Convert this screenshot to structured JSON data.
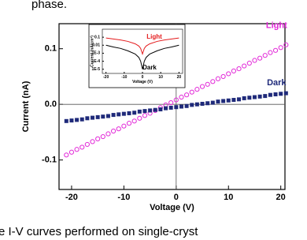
{
  "caption_top": "phase.",
  "caption_bottom": "e I-V curves performed on single-cryst",
  "chart_data": [
    {
      "type": "scatter",
      "xlabel": "Voltage (V)",
      "ylabel": "Current (nA)",
      "xlim": [
        -22.4,
        20.8
      ],
      "ylim": [
        -0.153,
        0.145
      ],
      "xticks": [
        -20,
        -10,
        0,
        10,
        20
      ],
      "yticks": [
        -0.1,
        {
          "value": 0,
          "label": "0.0"
        },
        0.1
      ],
      "x": [
        -21,
        -20,
        -19,
        -18,
        -17,
        -16,
        -15,
        -14,
        -13,
        -12,
        -11,
        -10,
        -9,
        -8,
        -7,
        -6,
        -5,
        -4,
        -3,
        -2,
        -1,
        0,
        1,
        2,
        3,
        4,
        5,
        6,
        7,
        8,
        9,
        10,
        11,
        12,
        13,
        14,
        15,
        16,
        17,
        18,
        19,
        20,
        21
      ],
      "series": [
        {
          "name": "Light",
          "color": "#e22ad8",
          "marker": "circle",
          "values": [
            -0.091,
            -0.086,
            -0.081,
            -0.077,
            -0.072,
            -0.067,
            -0.062,
            -0.058,
            -0.053,
            -0.048,
            -0.044,
            -0.039,
            -0.034,
            -0.03,
            -0.025,
            -0.02,
            -0.016,
            -0.011,
            -0.006,
            -0.001,
            0.003,
            0.008,
            0.013,
            0.017,
            0.022,
            0.027,
            0.032,
            0.036,
            0.041,
            0.046,
            0.05,
            0.055,
            0.06,
            0.064,
            0.069,
            0.074,
            0.079,
            0.083,
            0.088,
            0.093,
            0.097,
            0.102,
            0.107
          ]
        },
        {
          "name": "Dark",
          "color": "#1f2a7a",
          "marker": "square",
          "values": [
            -0.03,
            -0.029,
            -0.028,
            -0.027,
            -0.025,
            -0.024,
            -0.023,
            -0.022,
            -0.021,
            -0.019,
            -0.018,
            -0.017,
            -0.016,
            -0.015,
            -0.013,
            -0.012,
            -0.011,
            -0.01,
            -0.009,
            -0.007,
            -0.006,
            -0.005,
            -0.004,
            -0.003,
            -0.001,
            0.0,
            0.001,
            0.002,
            0.003,
            0.005,
            0.006,
            0.007,
            0.008,
            0.009,
            0.011,
            0.012,
            0.013,
            0.014,
            0.015,
            0.017,
            0.018,
            0.019,
            0.02
          ]
        }
      ]
    },
    {
      "type": "line",
      "log_y": true,
      "xlabel": "Voltage (V)",
      "ylabel": "Current (nA/cm²)",
      "xlim": [
        -22,
        22
      ],
      "ylim": [
        3e-06,
        1
      ],
      "xticks": [
        -20,
        -10,
        0,
        10,
        20
      ],
      "yticks": [
        0.1,
        0.01,
        {
          "value": 0.001,
          "label": "1E-3"
        },
        {
          "value": 0.0001,
          "label": "1E-4"
        },
        {
          "value": 1e-05,
          "label": "1E-5"
        }
      ],
      "x": [
        -20,
        -16,
        -12,
        -8,
        -4,
        -2,
        -1,
        0,
        1,
        2,
        4,
        8,
        12,
        16,
        20
      ],
      "series": [
        {
          "name": "Light",
          "color": "#e41a1c",
          "values": [
            0.08,
            0.06,
            0.045,
            0.03,
            0.015,
            0.008,
            0.004,
            0.0008,
            0.004,
            0.008,
            0.015,
            0.03,
            0.045,
            0.06,
            0.08
          ]
        },
        {
          "name": "Dark",
          "color": "#000000",
          "values": [
            0.01,
            0.006,
            0.004,
            0.002,
            0.0008,
            0.0003,
            0.0001,
            1e-05,
            0.0001,
            0.0003,
            0.0008,
            0.002,
            0.004,
            0.006,
            0.01
          ]
        }
      ]
    }
  ]
}
